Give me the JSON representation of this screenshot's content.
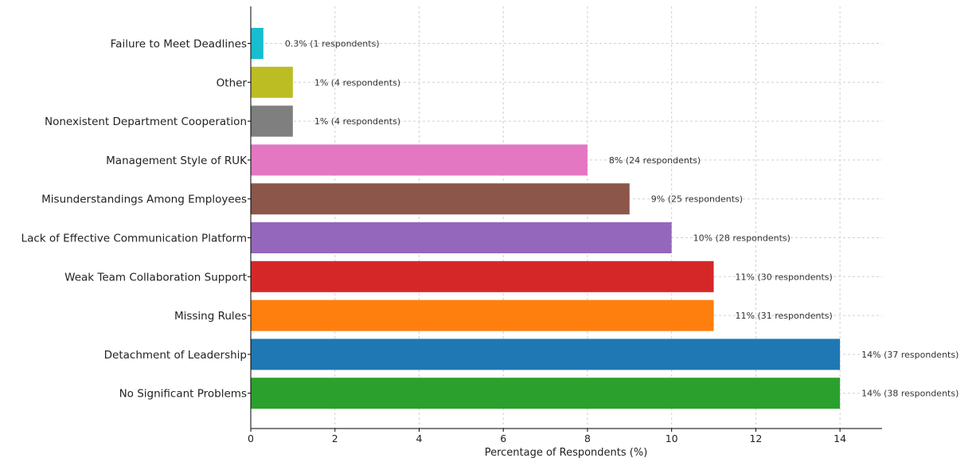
{
  "chart_data": {
    "type": "bar",
    "orientation": "horizontal",
    "title": "",
    "xlabel": "Percentage of Respondents (%)",
    "ylabel": "",
    "xlim": [
      0,
      15
    ],
    "xticks": [
      0,
      2,
      4,
      6,
      8,
      10,
      12,
      14
    ],
    "grid": true,
    "categories": [
      "Failure to Meet Deadlines",
      "Other",
      "Nonexistent Department Cooperation",
      "Management Style of RUK",
      "Misunderstandings Among Employees",
      "Lack of Effective Communication Platform",
      "Weak Team Collaboration Support",
      "Missing Rules",
      "Detachment of Leadership",
      "No Significant Problems"
    ],
    "values": [
      0.3,
      1,
      1,
      8,
      9,
      10,
      11,
      11,
      14,
      14
    ],
    "labels": [
      "0.3% (1 respondents)",
      "1% (4 respondents)",
      "1% (4 respondents)",
      "8% (24 respondents)",
      "9% (25 respondents)",
      "10% (28 respondents)",
      "11% (30 respondents)",
      "11% (31 respondents)",
      "14% (37 respondents)",
      "14% (38 respondents)"
    ],
    "colors": [
      "#17becf",
      "#bcbd22",
      "#7f7f7f",
      "#e377c2",
      "#8c564b",
      "#9467bd",
      "#d62728",
      "#ff7f0e",
      "#1f77b4",
      "#2ca02c"
    ]
  }
}
